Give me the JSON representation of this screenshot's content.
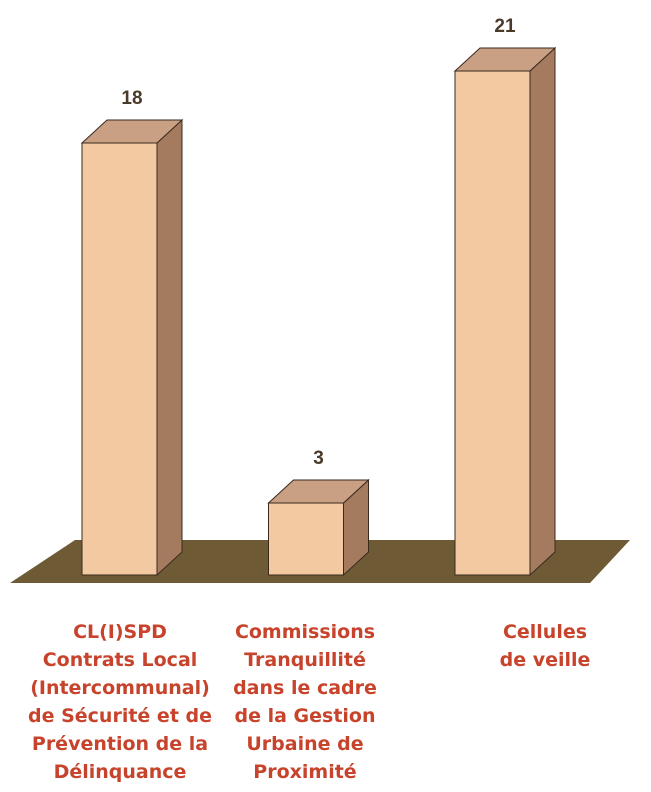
{
  "chart_data": {
    "type": "bar3d",
    "categories": [
      "CL(I)SPD\nContrats Local\n(Intercommunal)\nde Sécurité et de\nPrévention de la\nDélinquance",
      "Commissions\nTranquillité\ndans le cadre\nde la Gestion\nUrbaine de\nProximité",
      "Cellules\nde veille"
    ],
    "values": [
      18,
      3,
      21
    ],
    "color": "#f2c9a1"
  }
}
